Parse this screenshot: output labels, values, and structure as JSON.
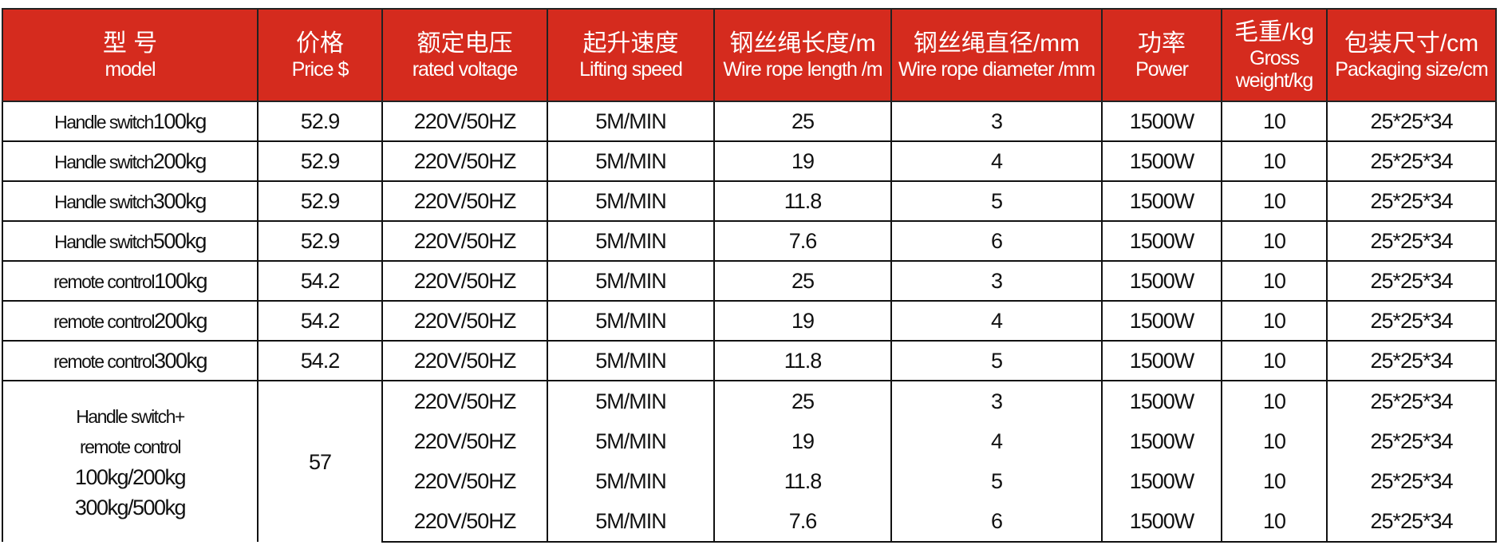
{
  "header": {
    "columns": [
      {
        "cn": "型 号",
        "en": "model"
      },
      {
        "cn": "价格",
        "en": "Price $"
      },
      {
        "cn": "额定电压",
        "en": "rated voltage"
      },
      {
        "cn": "起升速度",
        "en": "Lifting speed"
      },
      {
        "cn": "钢丝绳长度/m",
        "en": "Wire rope length /m"
      },
      {
        "cn": "钢丝绳直径/mm",
        "en": "Wire rope diameter /mm"
      },
      {
        "cn": "功率",
        "en": "Power"
      },
      {
        "cn": "毛重/kg",
        "en": "Gross weight/kg"
      },
      {
        "cn": "包装尺寸/cm",
        "en": "Packaging size/cm"
      }
    ]
  },
  "rows": [
    {
      "model_a": "Handle switch",
      "model_b": "100kg",
      "price": "52.9",
      "voltage": "220V/50HZ",
      "speed": "5M/MIN",
      "length": "25",
      "diameter": "3",
      "power": "1500W",
      "weight": "10",
      "size": "25*25*34"
    },
    {
      "model_a": "Handle switch",
      "model_b": "200kg",
      "price": "52.9",
      "voltage": "220V/50HZ",
      "speed": "5M/MIN",
      "length": "19",
      "diameter": "4",
      "power": "1500W",
      "weight": "10",
      "size": "25*25*34"
    },
    {
      "model_a": "Handle switch",
      "model_b": "300kg",
      "price": "52.9",
      "voltage": "220V/50HZ",
      "speed": "5M/MIN",
      "length": "11.8",
      "diameter": "5",
      "power": "1500W",
      "weight": "10",
      "size": "25*25*34"
    },
    {
      "model_a": "Handle switch",
      "model_b": "500kg",
      "price": "52.9",
      "voltage": "220V/50HZ",
      "speed": "5M/MIN",
      "length": "7.6",
      "diameter": "6",
      "power": "1500W",
      "weight": "10",
      "size": "25*25*34"
    },
    {
      "model_a": "remote control",
      "model_b": "100kg",
      "price": "54.2",
      "voltage": "220V/50HZ",
      "speed": "5M/MIN",
      "length": "25",
      "diameter": "3",
      "power": "1500W",
      "weight": "10",
      "size": "25*25*34"
    },
    {
      "model_a": "remote control",
      "model_b": "200kg",
      "price": "54.2",
      "voltage": "220V/50HZ",
      "speed": "5M/MIN",
      "length": "19",
      "diameter": "4",
      "power": "1500W",
      "weight": "10",
      "size": "25*25*34"
    },
    {
      "model_a": "remote control",
      "model_b": "300kg",
      "price": "54.2",
      "voltage": "220V/50HZ",
      "speed": "5M/MIN",
      "length": "11.8",
      "diameter": "5",
      "power": "1500W",
      "weight": "10",
      "size": "25*25*34"
    }
  ],
  "combo": {
    "model_lines": [
      "Handle switch+",
      "remote control",
      "100kg/200kg",
      "300kg/500kg"
    ],
    "price": "57",
    "subrows": [
      {
        "voltage": "220V/50HZ",
        "speed": "5M/MIN",
        "length": "25",
        "diameter": "3",
        "power": "1500W",
        "weight": "10",
        "size": "25*25*34"
      },
      {
        "voltage": "220V/50HZ",
        "speed": "5M/MIN",
        "length": "19",
        "diameter": "4",
        "power": "1500W",
        "weight": "10",
        "size": "25*25*34"
      },
      {
        "voltage": "220V/50HZ",
        "speed": "5M/MIN",
        "length": "11.8",
        "diameter": "5",
        "power": "1500W",
        "weight": "10",
        "size": "25*25*34"
      },
      {
        "voltage": "220V/50HZ",
        "speed": "5M/MIN",
        "length": "7.6",
        "diameter": "6",
        "power": "1500W",
        "weight": "10",
        "size": "25*25*34"
      }
    ]
  },
  "colors": {
    "header_bg": "#d52b1e",
    "header_text": "#ffffff"
  }
}
